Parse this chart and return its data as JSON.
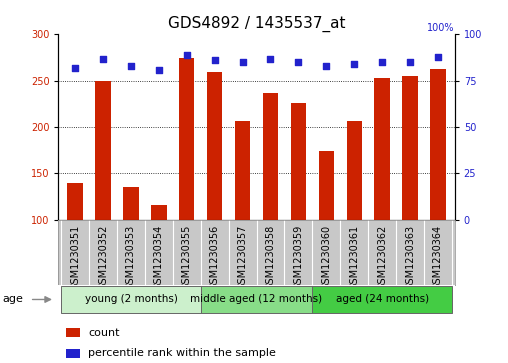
{
  "title": "GDS4892 / 1435537_at",
  "samples": [
    "GSM1230351",
    "GSM1230352",
    "GSM1230353",
    "GSM1230354",
    "GSM1230355",
    "GSM1230356",
    "GSM1230357",
    "GSM1230358",
    "GSM1230359",
    "GSM1230360",
    "GSM1230361",
    "GSM1230362",
    "GSM1230363",
    "GSM1230364"
  ],
  "counts": [
    140,
    250,
    135,
    116,
    275,
    260,
    207,
    237,
    226,
    174,
    207,
    253,
    255,
    263
  ],
  "percentiles": [
    82,
    87,
    83,
    81,
    89,
    86,
    85,
    87,
    85,
    83,
    84,
    85,
    85,
    88
  ],
  "ylim_left": [
    100,
    300
  ],
  "ylim_right": [
    0,
    100
  ],
  "yticks_left": [
    100,
    150,
    200,
    250,
    300
  ],
  "yticks_right": [
    0,
    25,
    50,
    75,
    100
  ],
  "groups": [
    {
      "label": "young (2 months)",
      "start": 0,
      "end": 5,
      "color": "#ccf0cc"
    },
    {
      "label": "middle aged (12 months)",
      "start": 5,
      "end": 9,
      "color": "#88dd88"
    },
    {
      "label": "aged (24 months)",
      "start": 9,
      "end": 14,
      "color": "#44cc44"
    }
  ],
  "bar_color": "#cc2200",
  "dot_color": "#2222cc",
  "grid_color": "#000000",
  "title_fontsize": 11,
  "tick_fontsize": 7,
  "label_fontsize": 8.5,
  "age_label": "age",
  "legend_count": "count",
  "legend_percentile": "percentile rank within the sample",
  "background_color": "#ffffff",
  "plot_bg": "#ffffff",
  "xtick_bg": "#c8c8c8",
  "xtick_sep_color": "#ffffff"
}
